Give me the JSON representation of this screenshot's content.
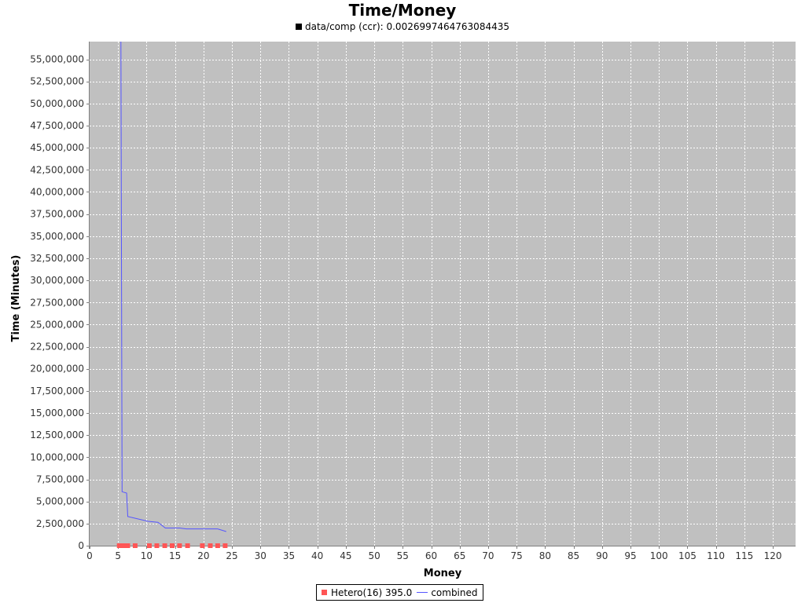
{
  "chart_data": {
    "type": "line",
    "title": "Time/Money",
    "subtitle": "data/comp (ccr): 0.0026997464763084435",
    "xlabel": "Money",
    "ylabel": "Time (Minutes)",
    "xlim": [
      0,
      124
    ],
    "ylim": [
      0,
      57000000
    ],
    "x_ticks": [
      0,
      5,
      10,
      15,
      20,
      25,
      30,
      35,
      40,
      45,
      50,
      55,
      60,
      65,
      70,
      75,
      80,
      85,
      90,
      95,
      100,
      105,
      110,
      115,
      120
    ],
    "y_ticks": [
      0,
      2500000,
      5000000,
      7500000,
      10000000,
      12500000,
      15000000,
      17500000,
      20000000,
      22500000,
      25000000,
      27500000,
      30000000,
      32500000,
      35000000,
      37500000,
      40000000,
      42500000,
      45000000,
      47500000,
      50000000,
      52500000,
      55000000
    ],
    "x_tick_labels": [
      "0",
      "5",
      "10",
      "15",
      "20",
      "25",
      "30",
      "35",
      "40",
      "45",
      "50",
      "55",
      "60",
      "65",
      "70",
      "75",
      "80",
      "85",
      "90",
      "95",
      "100",
      "105",
      "110",
      "115",
      "120"
    ],
    "y_tick_labels": [
      "0",
      "2,500,000",
      "5,000,000",
      "7,500,000",
      "10,000,000",
      "12,500,000",
      "15,000,000",
      "17,500,000",
      "20,000,000",
      "22,500,000",
      "25,000,000",
      "27,500,000",
      "30,000,000",
      "32,500,000",
      "35,000,000",
      "37,500,000",
      "40,000,000",
      "42,500,000",
      "45,000,000",
      "47,500,000",
      "50,000,000",
      "52,500,000",
      "55,000,000"
    ],
    "grid": true,
    "legend_position": "bottom-center",
    "series": [
      {
        "name": "Hetero(16) 395.0",
        "kind": "scatter",
        "color": "#ff5555",
        "x": [
          5.2,
          5.7,
          6.2,
          6.7,
          8.0,
          10.5,
          11.8,
          13.2,
          14.5,
          15.8,
          17.2,
          19.8,
          21.2,
          22.5,
          23.8
        ],
        "y": [
          0,
          0,
          0,
          0,
          0,
          0,
          0,
          0,
          0,
          0,
          0,
          0,
          0,
          0,
          0
        ]
      },
      {
        "name": "combined",
        "kind": "line",
        "color": "#5555ff",
        "x": [
          5.5,
          5.6,
          5.7,
          6.5,
          6.7,
          10.3,
          12.0,
          13.3,
          15.8,
          17.0,
          22.5,
          24.0
        ],
        "y": [
          57000000,
          30000000,
          6100000,
          5950000,
          3300000,
          2750000,
          2650000,
          2000000,
          2000000,
          1900000,
          1900000,
          1600000
        ]
      }
    ]
  },
  "colors": {
    "plot_background": "#c0c0c0",
    "gridline": "#ffffff",
    "axis": "#808080"
  }
}
